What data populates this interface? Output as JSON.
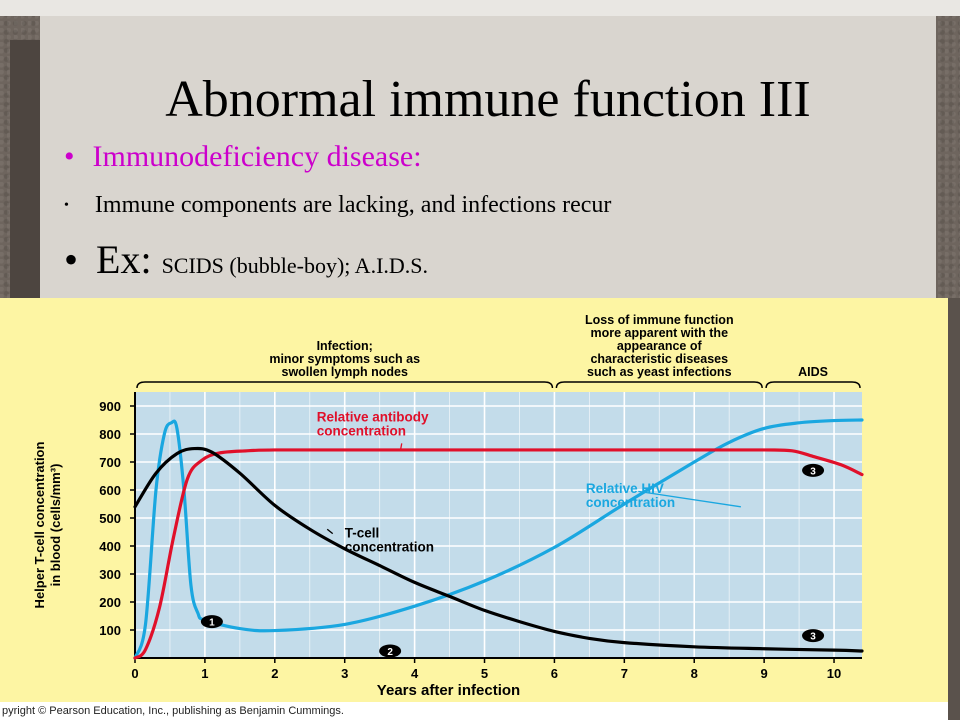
{
  "slide": {
    "title": "Abnormal immune function III",
    "bullets": [
      {
        "text": "Immunodeficiency  disease:"
      },
      {
        "text": "Immune  components  are lacking, and infections recur"
      },
      {
        "prefix": "Ex: ",
        "text": "SCIDS (bubble-boy); A.I.D.S."
      }
    ],
    "bullet_glyph": "•"
  },
  "figure": {
    "phases": [
      {
        "lines": [
          "Infection;",
          "minor symptoms such as",
          "swollen lymph nodes"
        ],
        "x0": 0,
        "x1": 6
      },
      {
        "lines": [
          "Loss of immune function",
          "more apparent with the",
          "appearance of",
          "characteristic diseases",
          "such as yeast infections"
        ],
        "x0": 6,
        "x1": 9
      },
      {
        "lines": [
          "AIDS"
        ],
        "x0": 9,
        "x1": 10.4
      }
    ],
    "markers": [
      {
        "label": "1",
        "x": 1.1,
        "y": 130
      },
      {
        "label": "2",
        "x": 3.65,
        "y": 25
      },
      {
        "label": "3",
        "x": 9.7,
        "y": 670
      },
      {
        "label": "3",
        "x": 9.7,
        "y": 80
      }
    ],
    "copyright": "pyright © Pearson Education, Inc., publishing as Benjamin Cummings.",
    "colors": {
      "tcell": "#000000",
      "antibody": "#e0102a",
      "hiv": "#1aa7e0",
      "plot_bg": "#c3dcea",
      "panel_bg": "#fdf5a3"
    }
  },
  "chart_data": {
    "type": "line",
    "xlabel": "Years after infection",
    "ylabel": "Helper T-cell concentration in blood (cells/mm³)",
    "xlim": [
      0,
      10.4
    ],
    "ylim": [
      0,
      950
    ],
    "xticks": [
      0,
      1,
      2,
      3,
      4,
      5,
      6,
      7,
      8,
      9,
      10
    ],
    "yticks": [
      100,
      200,
      300,
      400,
      500,
      600,
      700,
      800,
      900
    ],
    "grid": true,
    "series": [
      {
        "name": "T-cell concentration",
        "label_lines": [
          "T-cell",
          "concentration"
        ],
        "label_at": [
          3.0,
          430
        ],
        "leader_to": [
          2.75,
          460
        ],
        "color": "#000000",
        "x": [
          0,
          0.3,
          0.6,
          0.85,
          1.1,
          1.5,
          2,
          2.5,
          3,
          3.5,
          4,
          4.5,
          5,
          5.5,
          6,
          6.5,
          7,
          8,
          9,
          10,
          10.4
        ],
        "y": [
          540,
          660,
          730,
          748,
          735,
          660,
          545,
          460,
          390,
          330,
          270,
          220,
          170,
          130,
          95,
          70,
          55,
          40,
          33,
          28,
          25
        ]
      },
      {
        "name": "Relative antibody concentration",
        "label_lines": [
          "Relative antibody",
          "concentration"
        ],
        "label_at": [
          2.6,
          845
        ],
        "leader_to": [
          3.8,
          745
        ],
        "color": "#e0102a",
        "x": [
          0,
          0.15,
          0.35,
          0.55,
          0.75,
          0.95,
          1.2,
          1.6,
          2,
          3,
          4,
          5,
          6,
          7,
          8,
          9,
          9.4,
          9.7,
          10.1,
          10.4
        ],
        "y": [
          0,
          30,
          180,
          430,
          640,
          705,
          732,
          740,
          743,
          743,
          743,
          743,
          743,
          743,
          743,
          743,
          740,
          720,
          690,
          655
        ]
      },
      {
        "name": "Relative HIV concentration",
        "label_lines": [
          "Relative HIV",
          "concentration"
        ],
        "label_at": [
          6.45,
          590
        ],
        "leader_to": [
          7.2,
          595
        ],
        "color": "#1aa7e0",
        "x": [
          0,
          0.15,
          0.3,
          0.42,
          0.52,
          0.6,
          0.7,
          0.8,
          0.9,
          1.0,
          1.5,
          2,
          3,
          4,
          5,
          6,
          7,
          8,
          8.5,
          9,
          9.5,
          10,
          10.4
        ],
        "y": [
          0,
          120,
          600,
          800,
          840,
          820,
          600,
          260,
          160,
          135,
          105,
          98,
          120,
          185,
          275,
          395,
          550,
          700,
          770,
          820,
          840,
          848,
          850
        ]
      }
    ]
  }
}
